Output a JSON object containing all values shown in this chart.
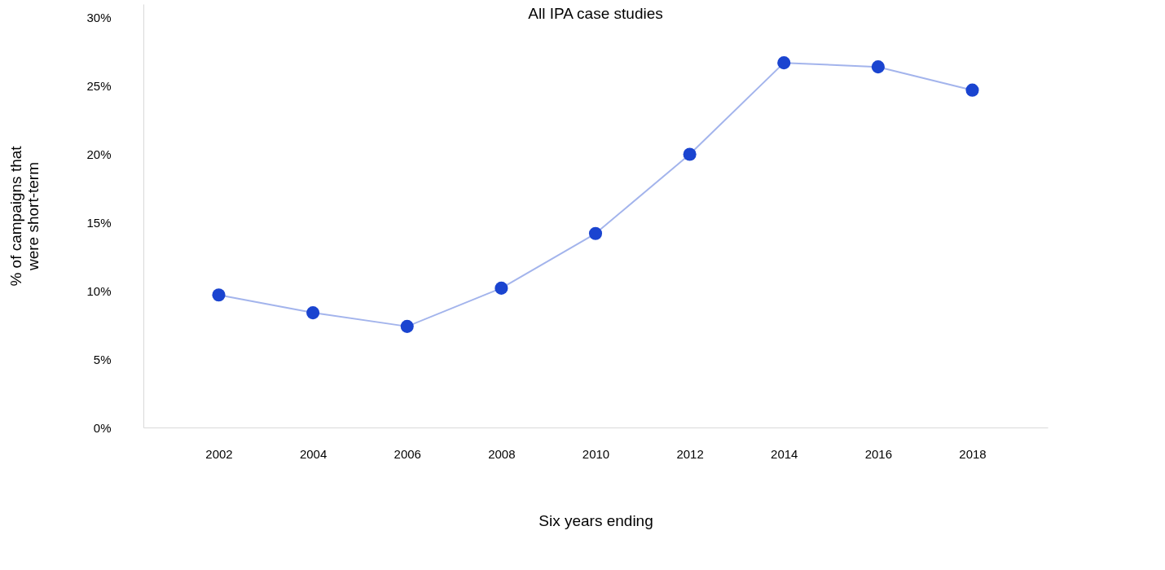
{
  "chart_data": {
    "type": "line",
    "title": "All IPA case studies",
    "xlabel": "Six years ending",
    "ylabel": "% of campaigns that were short-term",
    "categories": [
      "2002",
      "2004",
      "2006",
      "2008",
      "2010",
      "2012",
      "2014",
      "2016",
      "2018"
    ],
    "series": [
      {
        "color": "#1a44d0",
        "values": [
          9.7,
          8.4,
          7.4,
          10.2,
          14.2,
          20.0,
          26.7,
          26.4,
          24.7
        ]
      }
    ],
    "ylim": [
      0,
      31
    ],
    "yticks": [
      {
        "value": 0,
        "label": "0%"
      },
      {
        "value": 5,
        "label": "5%"
      },
      {
        "value": 10,
        "label": "10%"
      },
      {
        "value": 15,
        "label": "15%"
      },
      {
        "value": 20,
        "label": "20%"
      },
      {
        "value": 25,
        "label": "25%"
      },
      {
        "value": 30,
        "label": "30%"
      }
    ],
    "grid": false,
    "marker": "circle",
    "line_style": "solid"
  }
}
